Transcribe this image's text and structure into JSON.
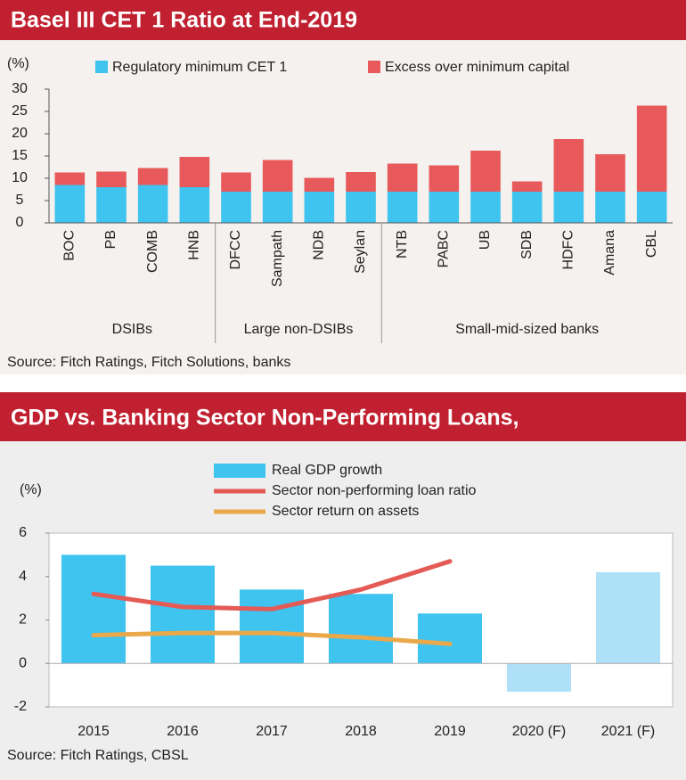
{
  "chart_data": [
    {
      "type": "bar",
      "stacked": true,
      "title": "Basel III CET 1 Ratio at End-2019",
      "ylabel": "(%)",
      "categories": [
        "BOC",
        "PB",
        "COMB",
        "HNB",
        "DFCC",
        "Sampath",
        "NDB",
        "Seylan",
        "NTB",
        "PABC",
        "UB",
        "SDB",
        "HDFC",
        "Amana",
        "CBL"
      ],
      "groups": [
        {
          "label": "DSIBs",
          "count": 4
        },
        {
          "label": "Large non-DSIBs",
          "count": 4
        },
        {
          "label": "Small-mid-sized banks",
          "count": 7
        }
      ],
      "series": [
        {
          "name": "Regulatory minimum CET 1",
          "color": "#3fc3ef",
          "values": [
            8.5,
            8,
            8.5,
            8,
            7,
            7,
            7,
            7,
            7,
            7,
            7,
            7,
            7,
            7,
            7
          ]
        },
        {
          "name": "Excess over minimum capital",
          "color": "#e8595b",
          "values": [
            2.8,
            3.5,
            3.8,
            6.8,
            4.3,
            7.1,
            3.1,
            4.4,
            6.3,
            5.9,
            9.2,
            2.3,
            11.8,
            8.4,
            19.3
          ]
        }
      ],
      "ylim": [
        0,
        30
      ],
      "yticks": [
        0,
        5,
        10,
        15,
        20,
        25,
        30
      ],
      "source": "Source: Fitch Ratings, Fitch Solutions, banks"
    },
    {
      "type": "combo",
      "title": "GDP vs. Banking Sector Non-Performing Loans,",
      "ylabel": "(%)",
      "categories": [
        "2015",
        "2016",
        "2017",
        "2018",
        "2019",
        "2020 (F)",
        "2021 (F)"
      ],
      "series": [
        {
          "name": "Real GDP growth",
          "kind": "bar",
          "color": "#3fc3ef",
          "colors": [
            "#3fc3ef",
            "#3fc3ef",
            "#3fc3ef",
            "#3fc3ef",
            "#3fc3ef",
            "#aee0f7",
            "#aee0f7"
          ],
          "values": [
            5.0,
            4.5,
            3.4,
            3.2,
            2.3,
            -1.3,
            4.2
          ]
        },
        {
          "name": "Sector non-performing loan ratio",
          "kind": "line",
          "color": "#e45a55",
          "values": [
            3.2,
            2.6,
            2.5,
            3.4,
            4.7,
            null,
            null
          ]
        },
        {
          "name": "Sector return on assets",
          "kind": "line",
          "color": "#e9a84a",
          "values": [
            1.3,
            1.4,
            1.4,
            1.2,
            0.9,
            null,
            null
          ]
        }
      ],
      "ylim": [
        -2,
        6
      ],
      "yticks": [
        -2,
        0,
        2,
        4,
        6
      ],
      "source": "Source: Fitch Ratings, CBSL"
    }
  ]
}
